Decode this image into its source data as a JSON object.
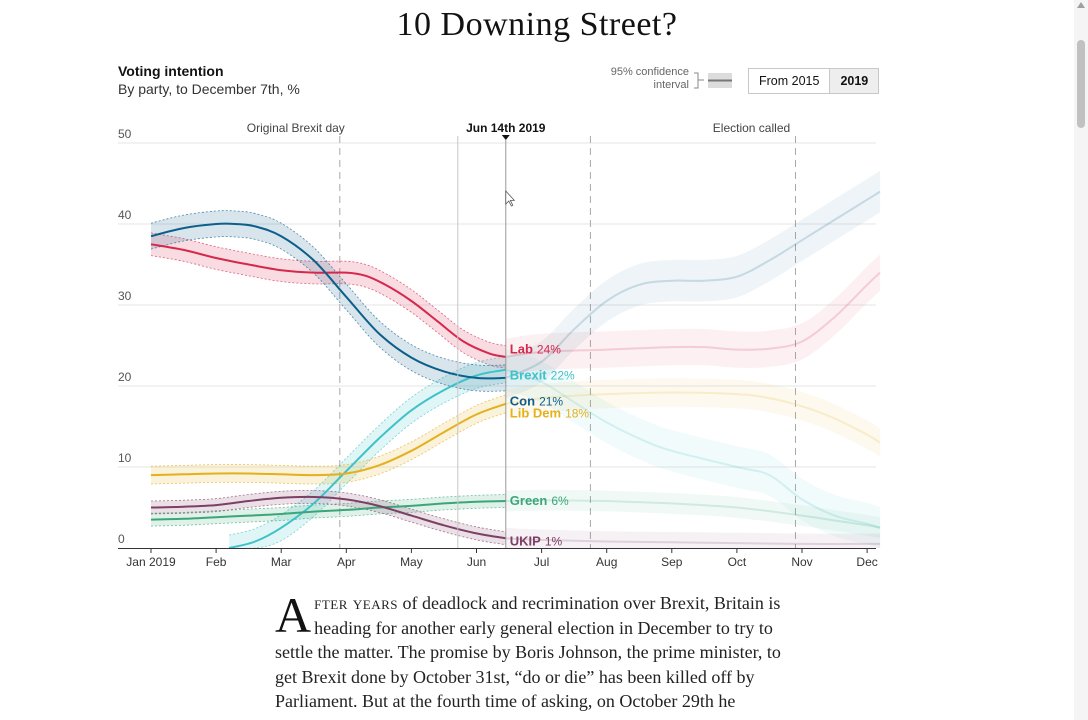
{
  "page": {
    "headline": "10 Downing Street?"
  },
  "chart_header": {
    "title": "Voting intention",
    "subtitle": "By party, to December 7th, %",
    "ci_label": "95% confidence\ninterval",
    "toggle": [
      {
        "label": "From 2015",
        "active": false
      },
      {
        "label": "2019",
        "active": true
      }
    ]
  },
  "chart_data": {
    "type": "line",
    "x_unit": "months since January 2019",
    "ylim": [
      0,
      50
    ],
    "xlim": [
      0,
      11.2
    ],
    "y_ticks": [
      0,
      10,
      20,
      30,
      40,
      50
    ],
    "x_ticks": [
      {
        "t": 0,
        "label": "Jan 2019"
      },
      {
        "t": 1,
        "label": "Feb"
      },
      {
        "t": 2,
        "label": "Mar"
      },
      {
        "t": 3,
        "label": "Apr"
      },
      {
        "t": 4,
        "label": "May"
      },
      {
        "t": 5,
        "label": "Jun"
      },
      {
        "t": 6,
        "label": "Jul"
      },
      {
        "t": 7,
        "label": "Aug"
      },
      {
        "t": 8,
        "label": "Sep"
      },
      {
        "t": 9,
        "label": "Oct"
      },
      {
        "t": 10,
        "label": "Nov"
      },
      {
        "t": 11,
        "label": "Dec"
      }
    ],
    "grid": true,
    "cursor_date": {
      "t": 5.45,
      "label": "Jun 14th 2019"
    },
    "annotations": [
      {
        "t": 2.9,
        "label": "Original Brexit day"
      },
      {
        "t": 6.75,
        "label": ""
      },
      {
        "t": 9.9,
        "label": "Election called"
      }
    ],
    "series": [
      {
        "name": "Lab",
        "color": "#d6274d",
        "label_value": "24%",
        "points": [
          [
            0,
            37.5
          ],
          [
            0.5,
            36.8
          ],
          [
            1,
            35.8
          ],
          [
            1.5,
            35
          ],
          [
            2,
            34.3
          ],
          [
            2.5,
            34
          ],
          [
            3,
            34
          ],
          [
            3.3,
            33.6
          ],
          [
            3.6,
            32.5
          ],
          [
            4,
            30.5
          ],
          [
            4.4,
            28
          ],
          [
            4.8,
            25.5
          ],
          [
            5.2,
            24
          ],
          [
            5.45,
            23.6
          ]
        ],
        "future": [
          [
            5.45,
            23.6
          ],
          [
            6,
            24.2
          ],
          [
            7,
            24.5
          ],
          [
            8,
            24.8
          ],
          [
            8.5,
            24.8
          ],
          [
            9,
            24.5
          ],
          [
            9.5,
            24.6
          ],
          [
            10,
            25.5
          ],
          [
            10.5,
            28.5
          ],
          [
            11,
            32.5
          ],
          [
            11.2,
            34
          ]
        ]
      },
      {
        "name": "Brexit",
        "color": "#3ec2c9",
        "label_value": "22%",
        "points": [
          [
            1.2,
            0
          ],
          [
            1.6,
            0.8
          ],
          [
            2,
            2.5
          ],
          [
            2.5,
            5.5
          ],
          [
            3,
            9.5
          ],
          [
            3.5,
            13.5
          ],
          [
            4,
            17
          ],
          [
            4.5,
            19.5
          ],
          [
            5,
            21.3
          ],
          [
            5.45,
            22
          ]
        ],
        "future": [
          [
            5.45,
            22
          ],
          [
            6,
            20.5
          ],
          [
            6.5,
            18
          ],
          [
            7,
            15.5
          ],
          [
            7.5,
            13.5
          ],
          [
            8,
            12
          ],
          [
            9,
            10
          ],
          [
            9.5,
            9
          ],
          [
            10,
            6
          ],
          [
            10.5,
            4
          ],
          [
            11,
            3
          ],
          [
            11.2,
            2.5
          ]
        ]
      },
      {
        "name": "Con",
        "color": "#0b5f8a",
        "label_value": "21%",
        "points": [
          [
            0,
            38.5
          ],
          [
            0.5,
            39.5
          ],
          [
            1,
            40
          ],
          [
            1.3,
            40
          ],
          [
            1.6,
            39.7
          ],
          [
            2,
            38.5
          ],
          [
            2.5,
            35.5
          ],
          [
            3,
            31
          ],
          [
            3.5,
            26.5
          ],
          [
            4,
            23.5
          ],
          [
            4.5,
            21.8
          ],
          [
            5,
            21
          ],
          [
            5.45,
            21
          ]
        ],
        "future": [
          [
            5.45,
            21
          ],
          [
            6,
            23
          ],
          [
            6.5,
            27
          ],
          [
            7,
            30.5
          ],
          [
            7.5,
            32.5
          ],
          [
            8,
            33
          ],
          [
            8.5,
            33
          ],
          [
            9,
            33.5
          ],
          [
            9.5,
            35.5
          ],
          [
            10,
            38
          ],
          [
            10.5,
            40.5
          ],
          [
            11,
            43
          ],
          [
            11.2,
            44
          ]
        ]
      },
      {
        "name": "Lib Dem",
        "color": "#e3b11b",
        "label_value": "18%",
        "points": [
          [
            0,
            9
          ],
          [
            0.5,
            9.1
          ],
          [
            1,
            9.2
          ],
          [
            1.5,
            9.2
          ],
          [
            2,
            9.1
          ],
          [
            2.5,
            9
          ],
          [
            3,
            9.2
          ],
          [
            3.5,
            10.2
          ],
          [
            4,
            12
          ],
          [
            4.5,
            14.3
          ],
          [
            5,
            16.5
          ],
          [
            5.45,
            17.8
          ]
        ],
        "future": [
          [
            5.45,
            17.8
          ],
          [
            6,
            18.5
          ],
          [
            6.5,
            18.8
          ],
          [
            7,
            19
          ],
          [
            8,
            19.2
          ],
          [
            9,
            19
          ],
          [
            9.5,
            18.5
          ],
          [
            10,
            17.5
          ],
          [
            10.5,
            16
          ],
          [
            11,
            14
          ],
          [
            11.2,
            13
          ]
        ]
      },
      {
        "name": "Green",
        "color": "#3aa679",
        "label_value": "6%",
        "points": [
          [
            0,
            3.5
          ],
          [
            0.5,
            3.6
          ],
          [
            1,
            3.8
          ],
          [
            1.5,
            4
          ],
          [
            2,
            4.2
          ],
          [
            2.5,
            4.5
          ],
          [
            3,
            4.7
          ],
          [
            3.5,
            5
          ],
          [
            4,
            5.2
          ],
          [
            4.5,
            5.5
          ],
          [
            5,
            5.7
          ],
          [
            5.45,
            5.8
          ]
        ],
        "future": [
          [
            5.45,
            5.8
          ],
          [
            6,
            5.9
          ],
          [
            7,
            5.8
          ],
          [
            8,
            5.5
          ],
          [
            9,
            5
          ],
          [
            10,
            4
          ],
          [
            10.5,
            3.4
          ],
          [
            11,
            2.8
          ],
          [
            11.2,
            2.5
          ]
        ]
      },
      {
        "name": "UKIP",
        "color": "#7c3f66",
        "label_value": "1%",
        "points": [
          [
            0,
            5
          ],
          [
            0.5,
            5.1
          ],
          [
            1,
            5.3
          ],
          [
            1.5,
            5.8
          ],
          [
            2,
            6.2
          ],
          [
            2.5,
            6.3
          ],
          [
            3,
            6
          ],
          [
            3.5,
            5.2
          ],
          [
            4,
            4
          ],
          [
            4.5,
            2.8
          ],
          [
            5,
            1.8
          ],
          [
            5.45,
            1.2
          ]
        ],
        "future": [
          [
            5.45,
            1.2
          ],
          [
            6,
            1
          ],
          [
            7,
            0.8
          ],
          [
            8,
            0.7
          ],
          [
            9,
            0.6
          ],
          [
            10,
            0.5
          ],
          [
            11,
            0.5
          ],
          [
            11.2,
            0.5
          ]
        ]
      }
    ],
    "ci_half_width": {
      "Lab": 1.4,
      "Brexit": 1.6,
      "Con": 1.6,
      "Lib Dem": 1.1,
      "Green": 0.8,
      "UKIP": 0.8
    }
  },
  "article": {
    "drop_cap": "A",
    "lead_caps": "fter years",
    "text": " of deadlock and recrimination over Brexit, Britain is heading for another early general election in December to try to settle the matter. The promise by Boris Johnson, the prime minister, to get Brexit done by October 31st, “do or die” has been killed off by Parliament. But at the fourth time of asking, on October 29th he"
  }
}
